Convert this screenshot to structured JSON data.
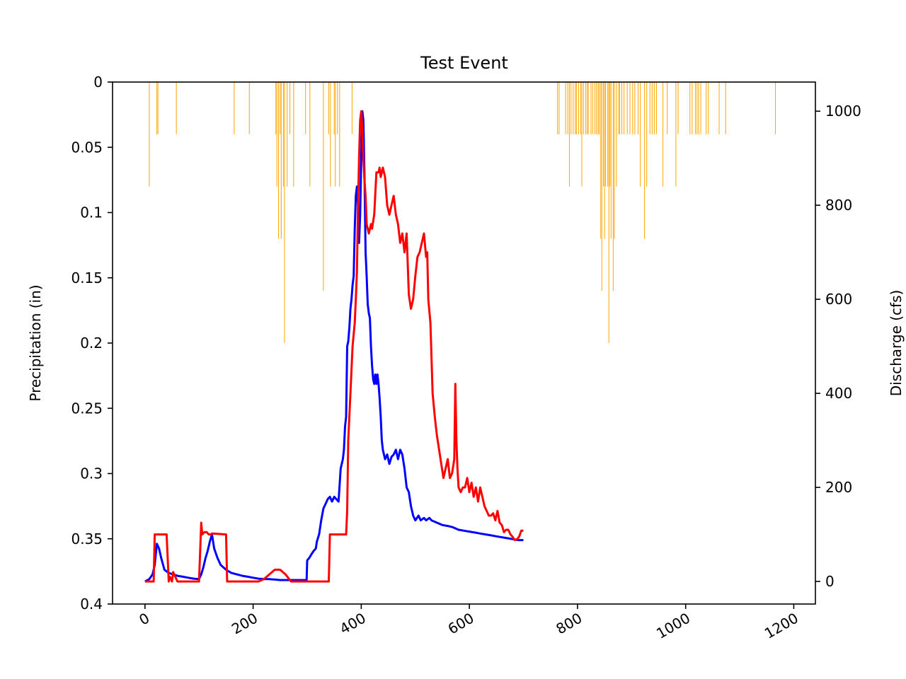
{
  "chart_data": {
    "type": "bar+line",
    "title": "Test Event",
    "xlabel": "",
    "ylabel_left": "Precipitation (in)",
    "ylabel_right": "Discharge (cfs)",
    "x_ticks": [
      "0",
      "200",
      "400",
      "600",
      "800",
      "1000",
      "1200"
    ],
    "y_left_ticks": [
      "0",
      "0.05",
      "0.1",
      "0.15",
      "0.2",
      "0.25",
      "0.3",
      "0.35",
      "0.4"
    ],
    "y_right_ticks": [
      "0",
      "200",
      "400",
      "600",
      "800",
      "1000"
    ],
    "xlim": [
      -60,
      1240
    ],
    "y_left_lim": [
      0.4,
      0
    ],
    "y_right_lim": [
      -48,
      1062
    ],
    "grid": false,
    "precip_color": "#ffa500",
    "precipitation": {
      "x": [
        8,
        22,
        24,
        58,
        165,
        193,
        242,
        244,
        247,
        250,
        252,
        256,
        258,
        263,
        268,
        275,
        297,
        305,
        330,
        340,
        343,
        350,
        352,
        356,
        360,
        383,
        763,
        766,
        778,
        782,
        785,
        788,
        792,
        796,
        798,
        802,
        806,
        808,
        811,
        815,
        818,
        820,
        825,
        828,
        832,
        835,
        838,
        840,
        843,
        845,
        848,
        850,
        852,
        856,
        858,
        860,
        862,
        866,
        868,
        872,
        876,
        878,
        882,
        886,
        892,
        897,
        902,
        906,
        912,
        916,
        924,
        928,
        934,
        938,
        942,
        946,
        958,
        966,
        982,
        986,
        1008,
        1012,
        1018,
        1021,
        1024,
        1028,
        1038,
        1042,
        1062,
        1074,
        1166
      ],
      "values": [
        0.08,
        0.04,
        0.04,
        0.04,
        0.04,
        0.04,
        0.04,
        0.08,
        0.12,
        0.04,
        0.12,
        0.08,
        0.2,
        0.08,
        0.04,
        0.08,
        0.04,
        0.08,
        0.16,
        0.04,
        0.08,
        0.04,
        0.08,
        0.04,
        0.08,
        0.04,
        0.04,
        0.04,
        0.04,
        0.04,
        0.08,
        0.04,
        0.04,
        0.04,
        0.04,
        0.04,
        0.04,
        0.08,
        0.04,
        0.04,
        0.04,
        0.04,
        0.04,
        0.04,
        0.04,
        0.04,
        0.04,
        0.04,
        0.12,
        0.16,
        0.08,
        0.12,
        0.08,
        0.08,
        0.2,
        0.08,
        0.12,
        0.16,
        0.12,
        0.08,
        0.04,
        0.04,
        0.04,
        0.04,
        0.04,
        0.04,
        0.04,
        0.04,
        0.04,
        0.08,
        0.12,
        0.08,
        0.04,
        0.04,
        0.04,
        0.04,
        0.08,
        0.04,
        0.08,
        0.04,
        0.04,
        0.04,
        0.04,
        0.04,
        0.04,
        0.04,
        0.04,
        0.04,
        0.04,
        0.04,
        0.04
      ]
    },
    "series": [
      {
        "color": "#0000ff",
        "x": [
          0,
          8,
          14,
          18,
          22,
          26,
          30,
          36,
          44,
          52,
          60,
          70,
          80,
          90,
          100,
          104,
          108,
          112,
          116,
          120,
          124,
          128,
          134,
          140,
          150,
          160,
          170,
          180,
          190,
          200,
          210,
          220,
          230,
          240,
          250,
          260,
          270,
          280,
          290,
          299,
          300,
          304,
          308,
          312,
          316,
          318,
          322,
          326,
          330,
          334,
          338,
          342,
          346,
          350,
          354,
          358,
          362,
          366,
          368,
          370,
          372,
          374,
          376,
          378,
          380,
          382,
          384,
          386,
          388,
          390,
          392,
          394,
          396,
          398,
          400,
          402,
          404,
          406,
          408,
          410,
          412,
          414,
          416,
          418,
          420,
          422,
          424,
          426,
          428,
          430,
          432,
          434,
          436,
          438,
          440,
          444,
          448,
          452,
          456,
          460,
          464,
          468,
          472,
          476,
          480,
          484,
          488,
          492,
          496,
          500,
          506,
          510,
          516,
          520,
          526,
          530,
          540,
          550,
          560,
          570,
          580,
          590,
          600,
          610,
          620,
          630,
          640,
          650,
          660,
          670,
          680,
          690,
          700
        ],
        "y": [
          0,
          5,
          15,
          35,
          80,
          70,
          50,
          25,
          18,
          15,
          12,
          10,
          8,
          6,
          5,
          15,
          30,
          50,
          65,
          85,
          100,
          70,
          50,
          35,
          25,
          18,
          15,
          12,
          10,
          8,
          6,
          5,
          5,
          4,
          3,
          3,
          3,
          3,
          3,
          3,
          45,
          50,
          58,
          65,
          70,
          85,
          100,
          130,
          155,
          165,
          175,
          180,
          170,
          180,
          175,
          170,
          240,
          260,
          280,
          330,
          350,
          500,
          510,
          540,
          580,
          600,
          630,
          650,
          750,
          820,
          840,
          800,
          720,
          780,
          900,
          1000,
          980,
          860,
          700,
          650,
          590,
          570,
          560,
          500,
          460,
          430,
          420,
          440,
          420,
          440,
          420,
          390,
          350,
          300,
          280,
          260,
          270,
          250,
          265,
          270,
          280,
          260,
          280,
          270,
          240,
          200,
          190,
          160,
          140,
          130,
          140,
          130,
          135,
          130,
          135,
          130,
          125,
          120,
          118,
          115,
          110,
          108,
          106,
          104,
          102,
          100,
          98,
          96,
          94,
          92,
          90,
          88,
          88
        ]
      },
      {
        "color": "#ff0000",
        "x": [
          0,
          16,
          18,
          40,
          44,
          46,
          50,
          52,
          56,
          60,
          70,
          80,
          100,
          104,
          106,
          110,
          114,
          118,
          122,
          124,
          150,
          152,
          160,
          180,
          200,
          210,
          220,
          230,
          240,
          250,
          260,
          270,
          280,
          290,
          300,
          320,
          340,
          342,
          368,
          370,
          372,
          374,
          376,
          380,
          384,
          388,
          390,
          392,
          394,
          396,
          398,
          400,
          402,
          404,
          406,
          408,
          410,
          414,
          418,
          420,
          424,
          428,
          432,
          434,
          436,
          440,
          444,
          448,
          452,
          456,
          460,
          464,
          468,
          472,
          476,
          480,
          484,
          488,
          492,
          496,
          500,
          504,
          508,
          512,
          516,
          520,
          522,
          524,
          528,
          532,
          536,
          540,
          544,
          548,
          552,
          556,
          560,
          564,
          568,
          572,
          574,
          576,
          578,
          580,
          584,
          588,
          592,
          596,
          600,
          604,
          608,
          612,
          616,
          620,
          624,
          628,
          632,
          636,
          640,
          644,
          648,
          652,
          656,
          660,
          664,
          668,
          672,
          676,
          680,
          684,
          688,
          692,
          696,
          700
        ],
        "y": [
          0,
          0,
          100,
          100,
          0,
          10,
          0,
          20,
          10,
          0,
          0,
          0,
          0,
          125,
          100,
          105,
          105,
          100,
          100,
          102,
          100,
          0,
          0,
          0,
          0,
          0,
          5,
          15,
          25,
          25,
          15,
          0,
          0,
          0,
          0,
          0,
          0,
          100,
          100,
          100,
          100,
          150,
          300,
          400,
          500,
          550,
          600,
          660,
          800,
          900,
          980,
          1000,
          960,
          900,
          850,
          820,
          760,
          740,
          760,
          750,
          780,
          870,
          870,
          880,
          860,
          880,
          860,
          800,
          780,
          800,
          820,
          780,
          760,
          720,
          740,
          700,
          740,
          610,
          580,
          600,
          650,
          690,
          700,
          720,
          740,
          690,
          700,
          600,
          550,
          400,
          350,
          310,
          280,
          250,
          220,
          240,
          260,
          220,
          230,
          260,
          420,
          300,
          240,
          200,
          190,
          200,
          200,
          220,
          190,
          210,
          180,
          200,
          170,
          200,
          180,
          160,
          150,
          140,
          140,
          145,
          130,
          150,
          125,
          120,
          105,
          110,
          110,
          100,
          95,
          88,
          90,
          95,
          108,
          108
        ]
      }
    ]
  }
}
